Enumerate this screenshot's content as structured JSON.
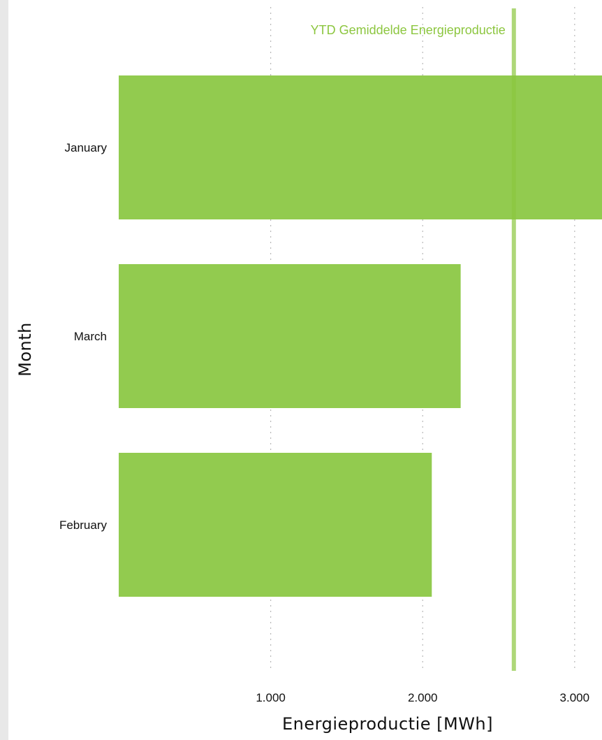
{
  "chart_data": {
    "type": "bar",
    "orientation": "horizontal",
    "categories": [
      "January",
      "March",
      "February"
    ],
    "values": [
      3180,
      2250,
      2060
    ],
    "xlabel": "Energieproductie [MWh]",
    "ylabel": "Month",
    "xticks": [
      1000,
      2000,
      3000
    ],
    "xtick_labels": [
      "1.000",
      "2.000",
      "3.000"
    ],
    "xlim": [
      0,
      3180
    ],
    "grid": "vertical dotted",
    "bar_color": "#92cb4f",
    "reference_line": {
      "label": "YTD Gemiddelde Energieproductie",
      "value": 2600,
      "color": "#8cc63f"
    }
  }
}
